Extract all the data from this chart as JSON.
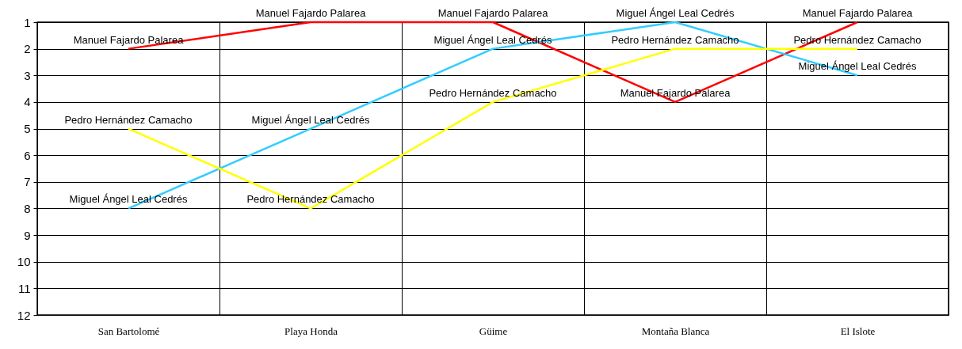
{
  "chart_data": {
    "type": "line",
    "categories": [
      "San Bartolomé",
      "Playa Honda",
      "Güime",
      "Montaña Blanca",
      "El Islote"
    ],
    "ylim": [
      12,
      1
    ],
    "yticks": [
      1,
      2,
      3,
      4,
      5,
      6,
      7,
      8,
      9,
      10,
      11,
      12
    ],
    "grid": true,
    "legend": false,
    "series": [
      {
        "name": "Manuel Fajardo Palarea",
        "color": "#ff0000",
        "values": [
          2,
          1,
          1,
          4,
          1
        ]
      },
      {
        "name": "Miguel Ángel Leal Cedrés",
        "color": "#33ccff",
        "values": [
          8,
          5,
          2,
          1,
          3
        ]
      },
      {
        "name": "Pedro Hernández Camacho",
        "color": "#ffff00",
        "values": [
          5,
          8,
          4,
          2,
          2
        ]
      }
    ]
  }
}
